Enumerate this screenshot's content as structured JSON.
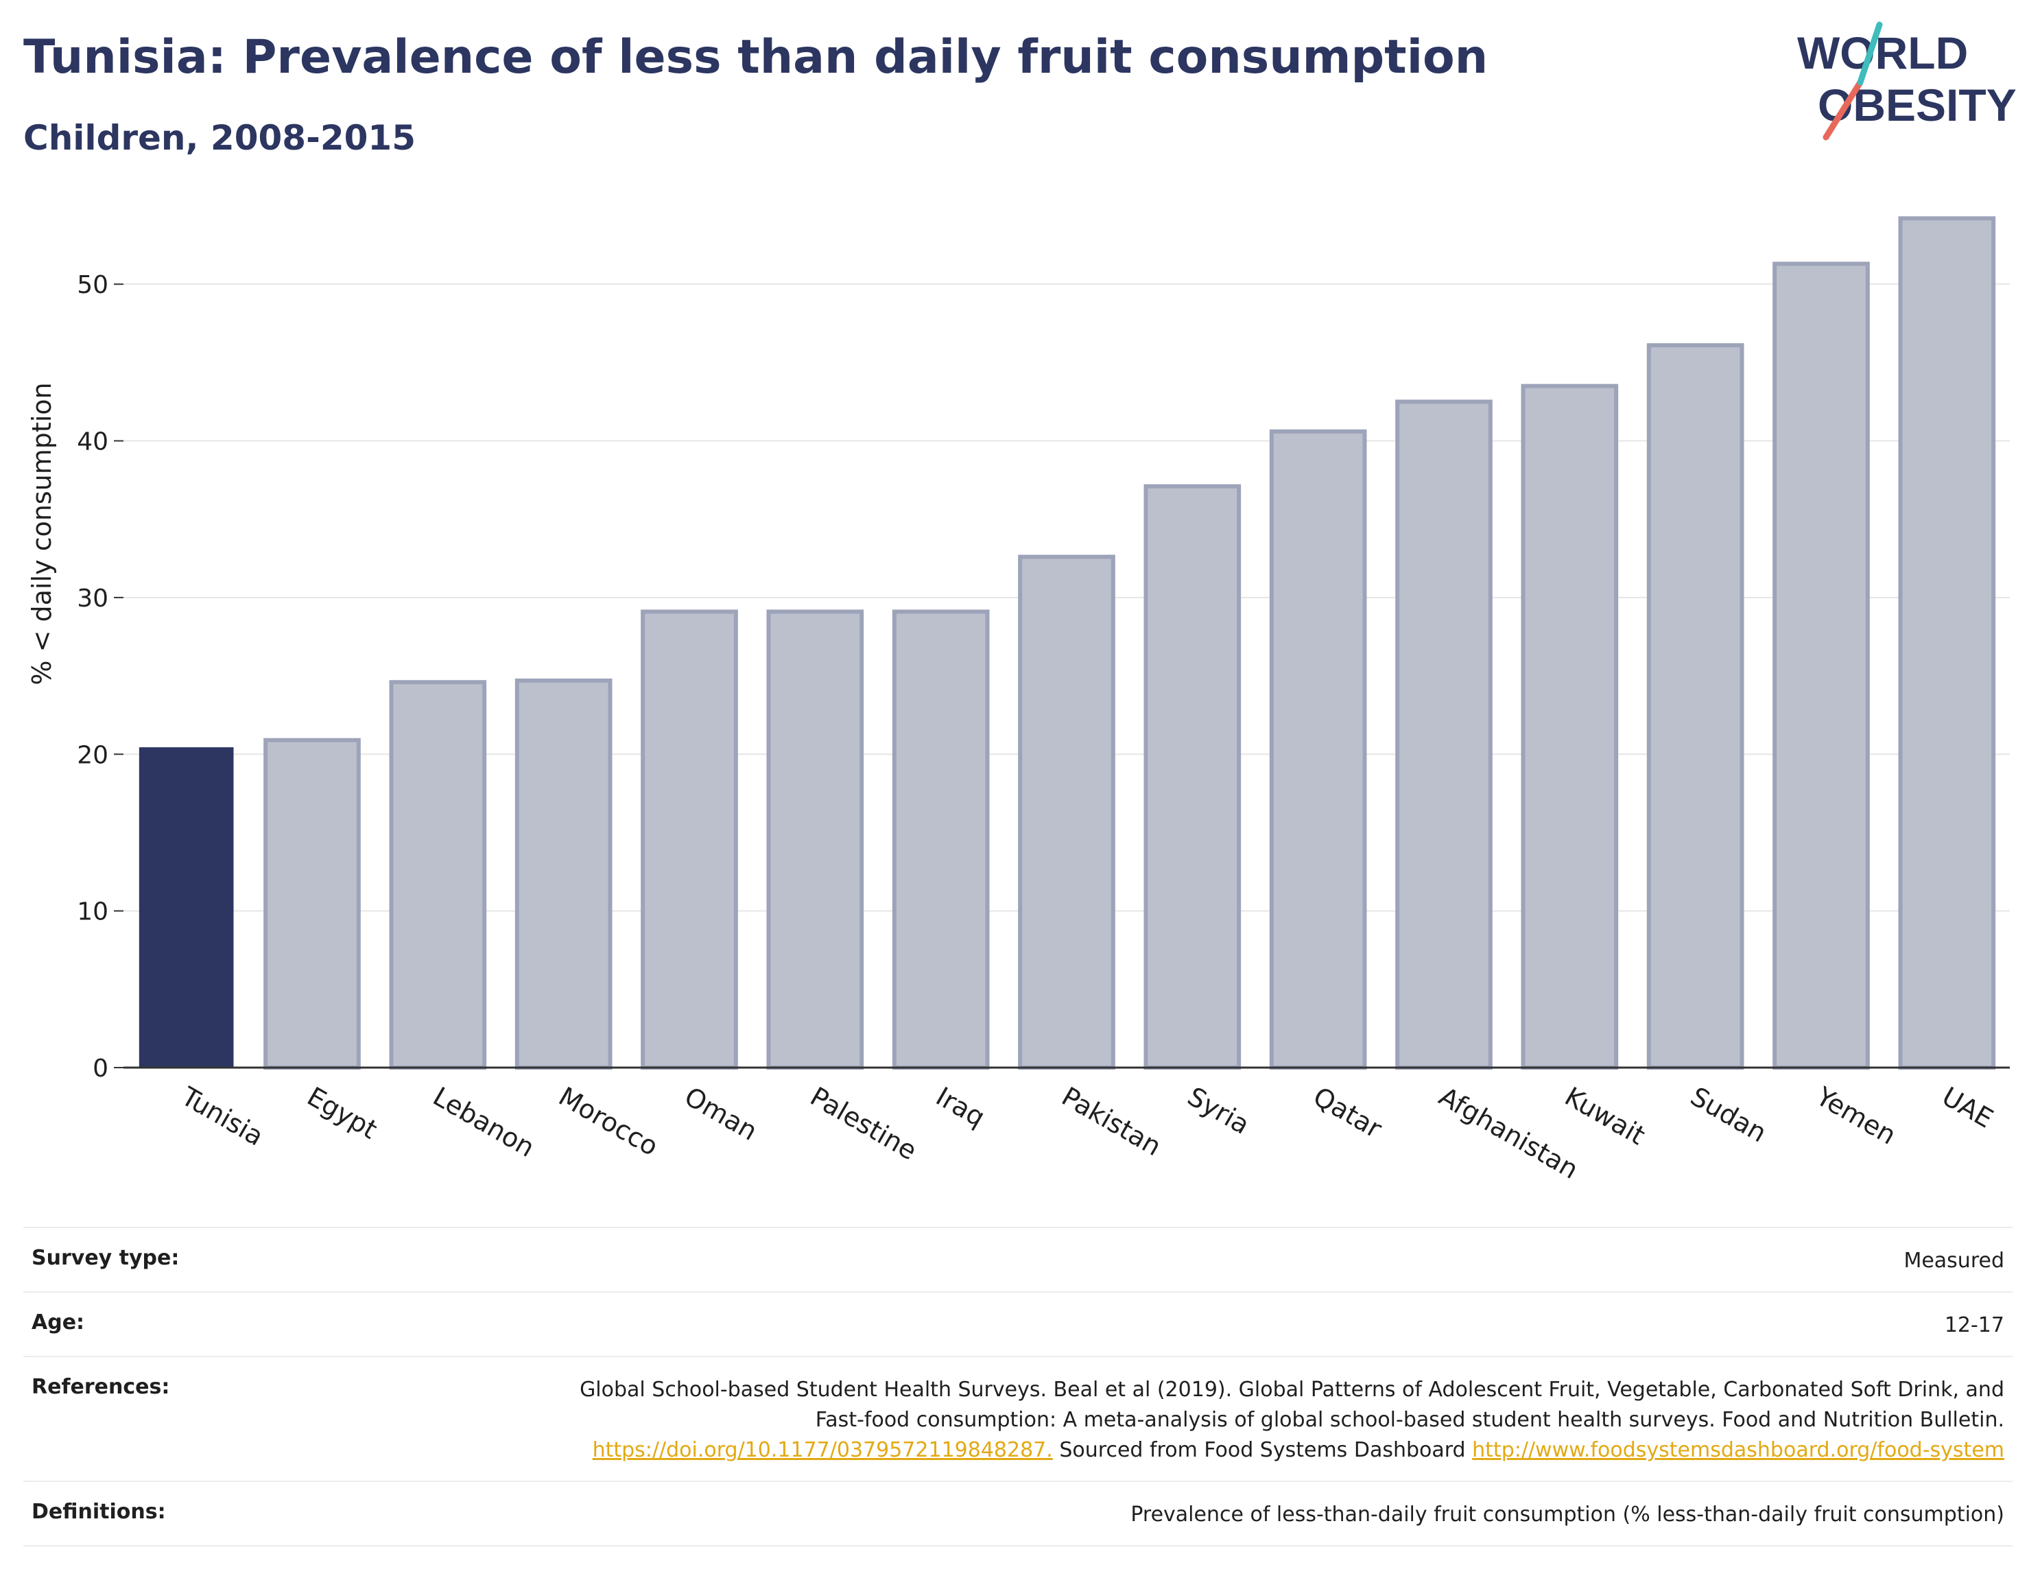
{
  "header": {
    "title": "Tunisia: Prevalence of less than daily fruit consumption",
    "subtitle": "Children, 2008-2015"
  },
  "logo": {
    "line1": "WORLD",
    "line2": "OBESITY"
  },
  "chart_data": {
    "type": "bar",
    "ylabel": "% < daily consumption",
    "xlabel": "",
    "ylim": [
      0,
      55
    ],
    "yticks": [
      0,
      10,
      20,
      30,
      40,
      50
    ],
    "grid": true,
    "categories": [
      "Tunisia",
      "Egypt",
      "Lebanon",
      "Morocco",
      "Oman",
      "Palestine",
      "Iraq",
      "Pakistan",
      "Syria",
      "Qatar",
      "Afghanistan",
      "Kuwait",
      "Sudan",
      "Yemen",
      "UAE"
    ],
    "values": [
      20.4,
      20.9,
      24.6,
      24.7,
      29.1,
      29.1,
      29.1,
      32.6,
      37.1,
      40.6,
      42.5,
      43.5,
      46.1,
      51.3,
      54.2
    ],
    "highlight": "Tunisia",
    "colors": {
      "highlight": "#2d3661",
      "other_fill": "#bcc0cd",
      "other_stroke": "#9da3b8",
      "grid": "#e6e6e6",
      "axis": "#333333"
    }
  },
  "meta": {
    "survey_type": {
      "label": "Survey type:",
      "value": "Measured"
    },
    "age": {
      "label": "Age:",
      "value": "12-17"
    },
    "references": {
      "label": "References:",
      "text1": "Global School-based Student Health Surveys. Beal et al (2019). Global Patterns of Adolescent Fruit, Vegetable, Carbonated Soft Drink, and Fast-food consumption: A meta-analysis of global school-based student health surveys. Food and Nutrition Bulletin.",
      "link1": "https://doi.org/10.1177/0379572119848287.",
      "text2": "Sourced from Food Systems Dashboard",
      "link2": "http://www.foodsystemsdashboard.org/food-system"
    },
    "definitions": {
      "label": "Definitions:",
      "value": "Prevalence of less-than-daily fruit consumption (% less-than-daily fruit consumption)"
    }
  }
}
